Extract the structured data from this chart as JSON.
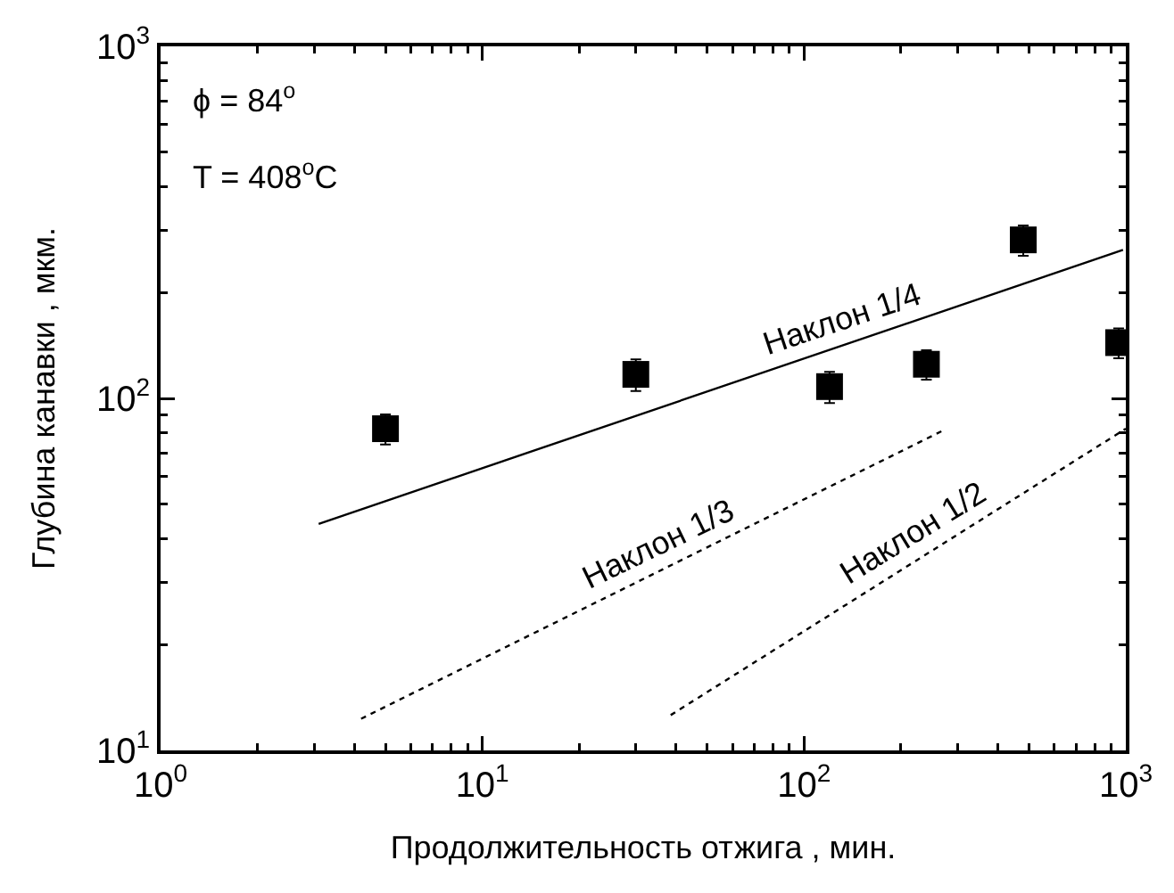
{
  "chart_data": {
    "type": "scatter",
    "xlabel": "Продолжительность отжига , мин.",
    "ylabel": "Глубина канавки , мкм.",
    "log": "xy",
    "grid": false,
    "marker": "square",
    "xlim": [
      1,
      1000
    ],
    "ylim": [
      10,
      1000
    ],
    "xticks": [
      {
        "value": 1,
        "label": "10$^{0}$"
      },
      {
        "value": 10,
        "label": "10$^{1}$"
      },
      {
        "value": 100,
        "label": "10$^{2}$"
      },
      {
        "value": 1000,
        "label": "10$^{3}$"
      }
    ],
    "yticks": [
      {
        "value": 10,
        "label": "10$^{1}$"
      },
      {
        "value": 100,
        "label": "10$^{2}$"
      },
      {
        "value": 1000,
        "label": "10$^{3}$"
      }
    ],
    "series": [
      {
        "color": "#000000",
        "x": [
          5,
          30,
          120,
          240,
          480,
          950
        ],
        "values": [
          82,
          117,
          108,
          125,
          282,
          144
        ],
        "errors": [
          8,
          12,
          11,
          12,
          28,
          14
        ]
      },
      {
        "type": "line",
        "color": "#000000",
        "line_style": "solid",
        "marker": "none",
        "x": [
          3.1,
          980
        ],
        "values": [
          44,
          264
        ]
      },
      {
        "type": "line",
        "color": "#000000",
        "line_style": "dotted",
        "marker": "none",
        "x": [
          4.2,
          270
        ],
        "values": [
          12.3,
          81
        ]
      },
      {
        "type": "line",
        "color": "#000000",
        "line_style": "dotted",
        "marker": "none",
        "x": [
          38.5,
          1000
        ],
        "values": [
          12.6,
          82
        ]
      }
    ],
    "annotations": [
      "ϕ = 84$^{o}$",
      "T = 408$^{o}$C",
      "Наклон 1/4",
      "Наклон 1/3",
      "Наклон 1/2"
    ]
  }
}
